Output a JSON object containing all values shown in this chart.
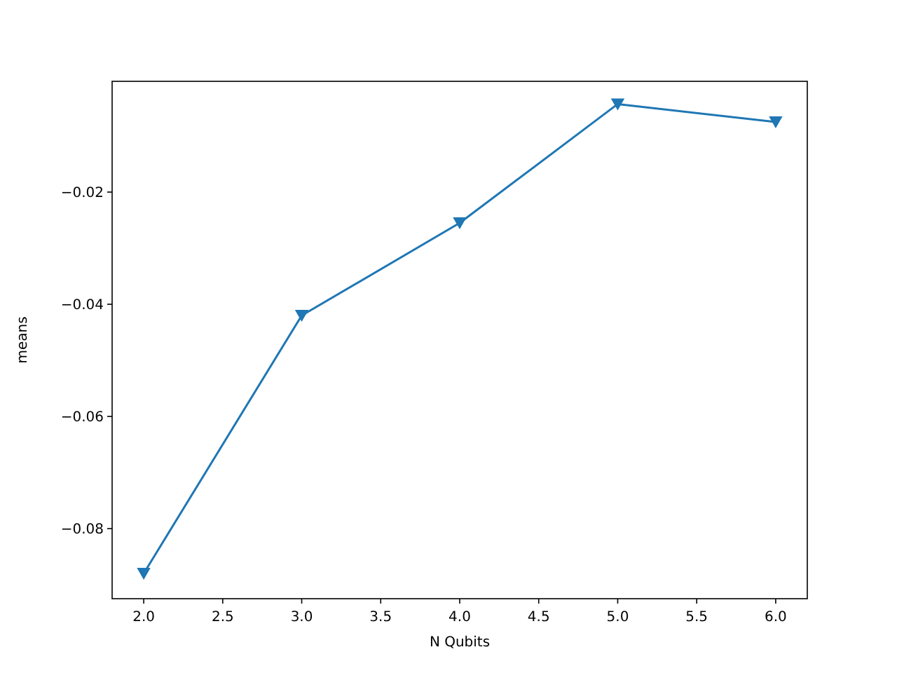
{
  "chart_data": {
    "type": "line",
    "xlabel": "N Qubits",
    "ylabel": "means",
    "x": [
      2,
      3,
      4,
      5,
      6
    ],
    "series": [
      {
        "color": "#1f77b4",
        "values": [
          -0.088,
          -0.042,
          -0.0255,
          -0.0043,
          -0.0075
        ]
      }
    ],
    "xlim": [
      1.8,
      6.2
    ],
    "xticks": [
      {
        "value": 2,
        "label": "2.0"
      },
      {
        "value": 2.5,
        "label": "2.5"
      },
      {
        "value": 3,
        "label": "3.0"
      },
      {
        "value": 3.5,
        "label": "3.5"
      },
      {
        "value": 4,
        "label": "4.0"
      },
      {
        "value": 4.5,
        "label": "4.5"
      },
      {
        "value": 5,
        "label": "5.0"
      },
      {
        "value": 5.5,
        "label": "5.5"
      },
      {
        "value": 6,
        "label": "6.0"
      }
    ],
    "ylim": [
      -0.0925,
      -0.00025
    ],
    "yticks": [
      {
        "value": -0.08,
        "label": "−0.08"
      },
      {
        "value": -0.06,
        "label": "−0.06"
      },
      {
        "value": -0.04,
        "label": "−0.04"
      },
      {
        "value": -0.02,
        "label": "−0.02"
      }
    ],
    "grid": false,
    "marker": "triangle",
    "line_style": "solid"
  }
}
